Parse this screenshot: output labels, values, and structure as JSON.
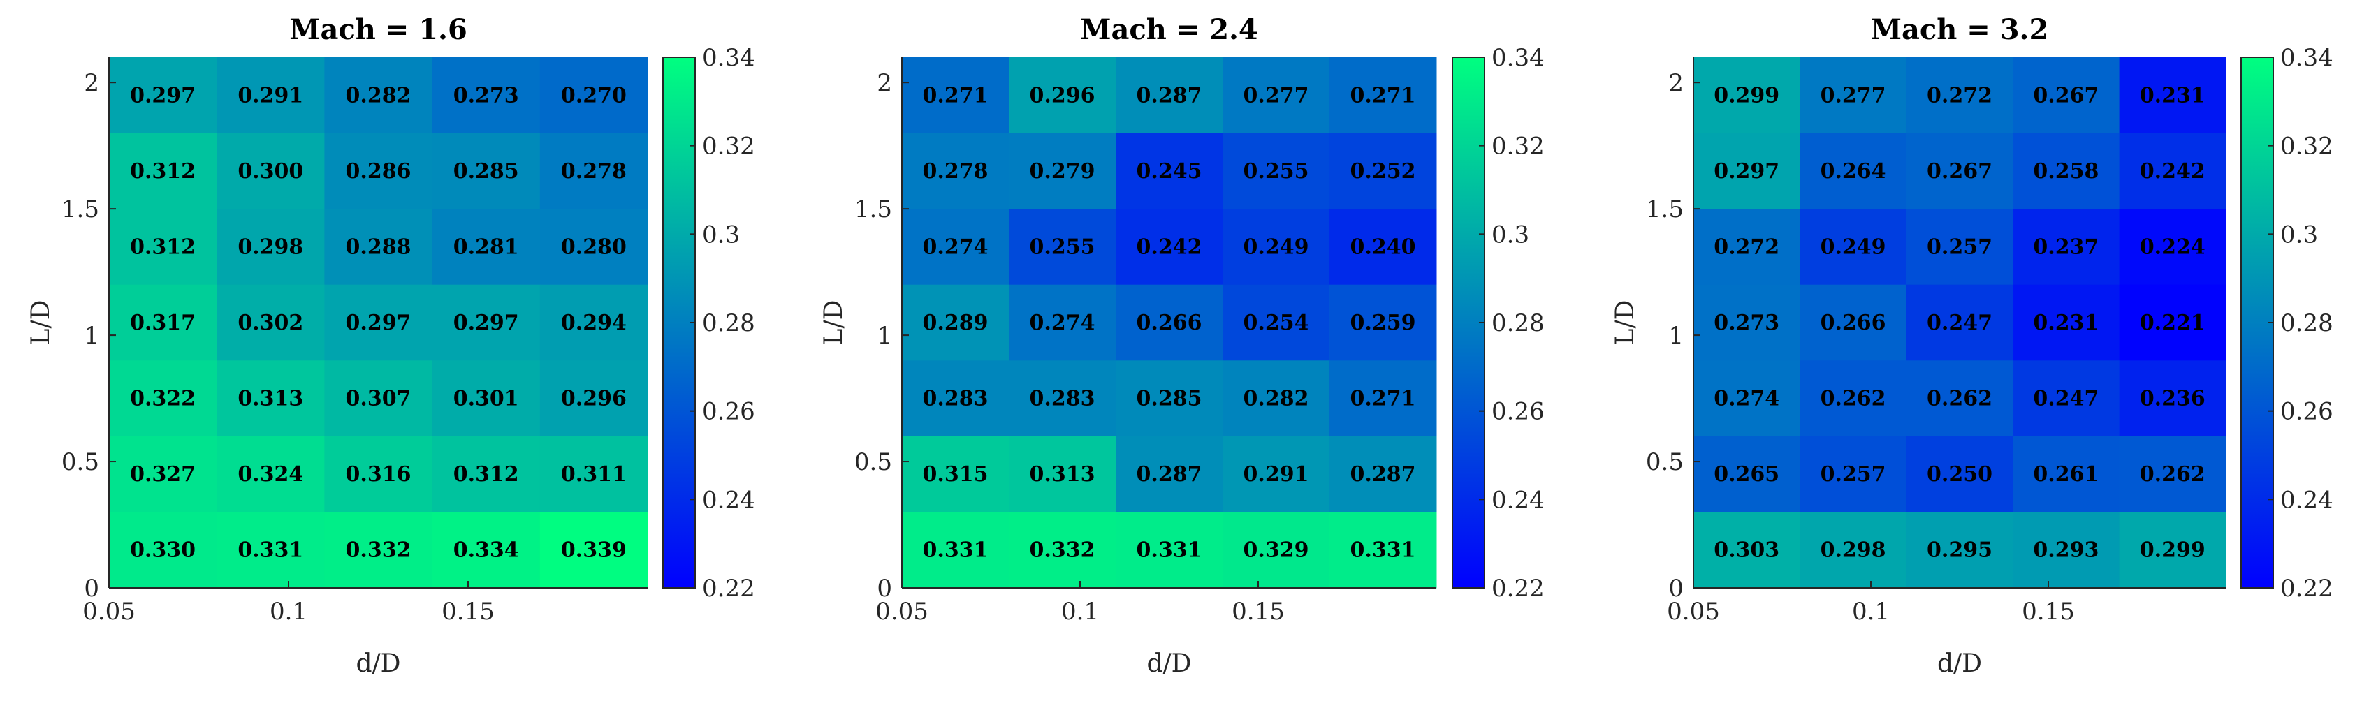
{
  "chart_data": [
    {
      "type": "heatmap",
      "title": "Mach = 1.6",
      "xlabel": "d/D",
      "ylabel": "L/D",
      "x_centers": [
        0.05,
        0.0875,
        0.125,
        0.1625,
        0.2
      ],
      "y_centers": [
        0,
        0.3333,
        0.6667,
        1.0,
        1.3333,
        1.6667,
        2.0
      ],
      "xlim": [
        0.05,
        0.2
      ],
      "ylim": [
        0,
        2.1
      ],
      "x_ticks": [
        "0.05",
        "0.1",
        "0.15"
      ],
      "y_ticks": [
        "0",
        "0.5",
        "1",
        "1.5",
        "2"
      ],
      "values": [
        [
          0.297,
          0.291,
          0.282,
          0.273,
          0.27
        ],
        [
          0.312,
          0.3,
          0.286,
          0.285,
          0.278
        ],
        [
          0.312,
          0.298,
          0.288,
          0.281,
          0.28
        ],
        [
          0.317,
          0.302,
          0.297,
          0.297,
          0.294
        ],
        [
          0.322,
          0.313,
          0.307,
          0.301,
          0.296
        ],
        [
          0.327,
          0.324,
          0.316,
          0.312,
          0.311
        ],
        [
          0.33,
          0.331,
          0.332,
          0.334,
          0.339
        ]
      ],
      "labels": [
        [
          "0.297",
          "0.291",
          "0.282",
          "0.273",
          "0.270"
        ],
        [
          "0.312",
          "0.300",
          "0.286",
          "0.285",
          "0.278"
        ],
        [
          "0.312",
          "0.298",
          "0.288",
          "0.281",
          "0.280"
        ],
        [
          "0.317",
          "0.302",
          "0.297",
          "0.297",
          "0.294"
        ],
        [
          "0.322",
          "0.313",
          "0.307",
          "0.301",
          "0.296"
        ],
        [
          "0.327",
          "0.324",
          "0.316",
          "0.312",
          "0.311"
        ],
        [
          "0.330",
          "0.331",
          "0.332",
          "0.334",
          "0.339"
        ]
      ],
      "colorbar": {
        "range": [
          0.22,
          0.34
        ],
        "ticks": [
          "0.22",
          "0.24",
          "0.26",
          "0.28",
          "0.3",
          "0.32",
          "0.34"
        ],
        "low_color": "#0000ff",
        "high_color": "#00ff80"
      }
    },
    {
      "type": "heatmap",
      "title": "Mach = 2.4",
      "xlabel": "d/D",
      "ylabel": "L/D",
      "x_centers": [
        0.05,
        0.0875,
        0.125,
        0.1625,
        0.2
      ],
      "y_centers": [
        0,
        0.3333,
        0.6667,
        1.0,
        1.3333,
        1.6667,
        2.0
      ],
      "xlim": [
        0.05,
        0.2
      ],
      "ylim": [
        0,
        2.1
      ],
      "x_ticks": [
        "0.05",
        "0.1",
        "0.15"
      ],
      "y_ticks": [
        "0",
        "0.5",
        "1",
        "1.5",
        "2"
      ],
      "values": [
        [
          0.271,
          0.296,
          0.287,
          0.277,
          0.271
        ],
        [
          0.278,
          0.279,
          0.245,
          0.255,
          0.252
        ],
        [
          0.274,
          0.255,
          0.242,
          0.249,
          0.24
        ],
        [
          0.289,
          0.274,
          0.266,
          0.254,
          0.259
        ],
        [
          0.283,
          0.283,
          0.285,
          0.282,
          0.271
        ],
        [
          0.315,
          0.313,
          0.287,
          0.291,
          0.287
        ],
        [
          0.331,
          0.332,
          0.331,
          0.329,
          0.331
        ]
      ],
      "labels": [
        [
          "0.271",
          "0.296",
          "0.287",
          "0.277",
          "0.271"
        ],
        [
          "0.278",
          "0.279",
          "0.245",
          "0.255",
          "0.252"
        ],
        [
          "0.274",
          "0.255",
          "0.242",
          "0.249",
          "0.240"
        ],
        [
          "0.289",
          "0.274",
          "0.266",
          "0.254",
          "0.259"
        ],
        [
          "0.283",
          "0.283",
          "0.285",
          "0.282",
          "0.271"
        ],
        [
          "0.315",
          "0.313",
          "0.287",
          "0.291",
          "0.287"
        ],
        [
          "0.331",
          "0.332",
          "0.331",
          "0.329",
          "0.331"
        ]
      ],
      "colorbar": {
        "range": [
          0.22,
          0.34
        ],
        "ticks": [
          "0.22",
          "0.24",
          "0.26",
          "0.28",
          "0.3",
          "0.32",
          "0.34"
        ],
        "low_color": "#0000ff",
        "high_color": "#00ff80"
      }
    },
    {
      "type": "heatmap",
      "title": "Mach = 3.2",
      "xlabel": "d/D",
      "ylabel": "L/D",
      "x_centers": [
        0.05,
        0.0875,
        0.125,
        0.1625,
        0.2
      ],
      "y_centers": [
        0,
        0.3333,
        0.6667,
        1.0,
        1.3333,
        1.6667,
        2.0
      ],
      "xlim": [
        0.05,
        0.2
      ],
      "ylim": [
        0,
        2.1
      ],
      "x_ticks": [
        "0.05",
        "0.1",
        "0.15"
      ],
      "y_ticks": [
        "0",
        "0.5",
        "1",
        "1.5",
        "2"
      ],
      "values": [
        [
          0.299,
          0.277,
          0.272,
          0.267,
          0.231
        ],
        [
          0.297,
          0.264,
          0.267,
          0.258,
          0.242
        ],
        [
          0.272,
          0.249,
          0.257,
          0.237,
          0.224
        ],
        [
          0.273,
          0.266,
          0.247,
          0.231,
          0.221
        ],
        [
          0.274,
          0.262,
          0.262,
          0.247,
          0.236
        ],
        [
          0.265,
          0.257,
          0.25,
          0.261,
          0.262
        ],
        [
          0.303,
          0.298,
          0.295,
          0.293,
          0.299
        ]
      ],
      "labels": [
        [
          "0.299",
          "0.277",
          "0.272",
          "0.267",
          "0.231"
        ],
        [
          "0.297",
          "0.264",
          "0.267",
          "0.258",
          "0.242"
        ],
        [
          "0.272",
          "0.249",
          "0.257",
          "0.237",
          "0.224"
        ],
        [
          "0.273",
          "0.266",
          "0.247",
          "0.231",
          "0.221"
        ],
        [
          "0.274",
          "0.262",
          "0.262",
          "0.247",
          "0.236"
        ],
        [
          "0.265",
          "0.257",
          "0.250",
          "0.261",
          "0.262"
        ],
        [
          "0.303",
          "0.298",
          "0.295",
          "0.293",
          "0.299"
        ]
      ],
      "colorbar": {
        "range": [
          0.22,
          0.34
        ],
        "ticks": [
          "0.22",
          "0.24",
          "0.26",
          "0.28",
          "0.3",
          "0.32",
          "0.34"
        ],
        "low_color": "#0000ff",
        "high_color": "#00ff80"
      }
    }
  ]
}
